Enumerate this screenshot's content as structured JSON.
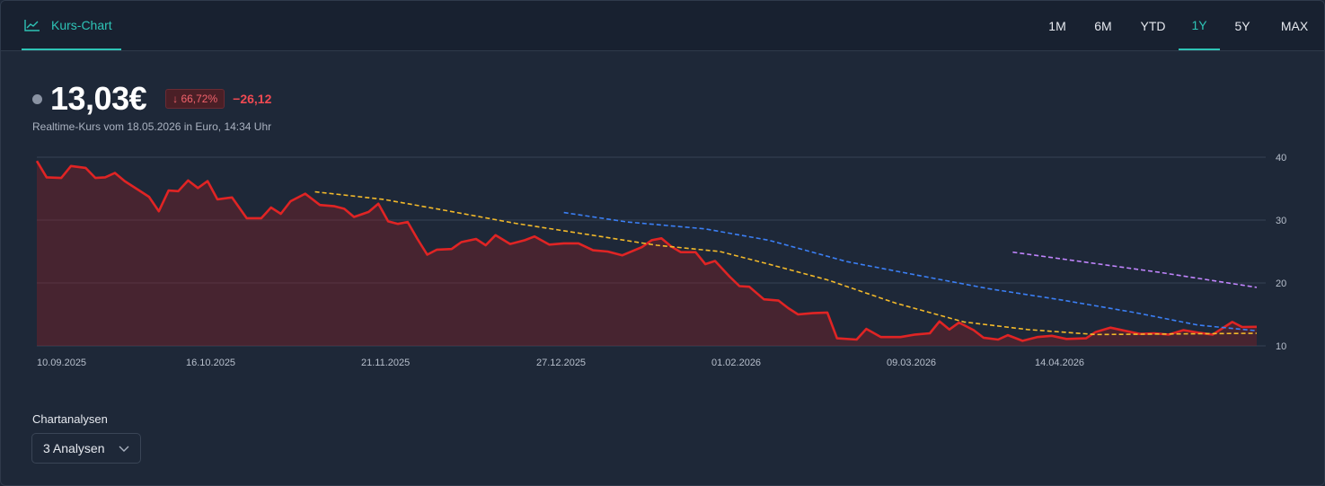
{
  "header": {
    "tab_label": "Kurs-Chart",
    "tab_icon": "line-chart-icon",
    "ranges": [
      "1M",
      "6M",
      "YTD",
      "1Y",
      "5Y",
      "MAX"
    ],
    "active_range": "1Y"
  },
  "quote": {
    "price": "13,03€",
    "change_pct": "↓ 66,72%",
    "change_abs": "−26,12",
    "subline": "Realtime-Kurs vom 18.05.2026 in Euro, 14:34 Uhr"
  },
  "colors": {
    "accent": "#2ec4b6",
    "price_line": "#e02424",
    "sma_yellow": "#f2b92a",
    "sma_blue": "#3b7ff5",
    "sma_purple": "#c084fc",
    "negative": "#f04a52"
  },
  "analysis": {
    "label": "Chartanalysen",
    "select_value": "3 Analysen",
    "select_icon": "chevron-down-icon"
  },
  "chart_data": {
    "type": "line",
    "title": "",
    "xlabel": "",
    "ylabel": "",
    "x_ticks": [
      "10.09.2025",
      "16.10.2025",
      "21.11.2025",
      "27.12.2025",
      "01.02.2026",
      "09.03.2026",
      "14.04.2026"
    ],
    "x_range": [
      "2025-09-10",
      "2026-05-18"
    ],
    "ylim": [
      10,
      40
    ],
    "y_ticks": [
      10,
      20,
      30,
      40
    ],
    "y_axis_position": "right",
    "grid": true,
    "series": [
      {
        "role": "price",
        "area": true,
        "points": [
          [
            "2025-09-10",
            39.4
          ],
          [
            "2025-09-12",
            36.8
          ],
          [
            "2025-09-15",
            36.7
          ],
          [
            "2025-09-17",
            38.6
          ],
          [
            "2025-09-20",
            38.3
          ],
          [
            "2025-09-22",
            36.7
          ],
          [
            "2025-09-24",
            36.8
          ],
          [
            "2025-09-26",
            37.5
          ],
          [
            "2025-09-28",
            36.2
          ],
          [
            "2025-10-01",
            34.7
          ],
          [
            "2025-10-03",
            33.7
          ],
          [
            "2025-10-05",
            31.4
          ],
          [
            "2025-10-07",
            34.7
          ],
          [
            "2025-10-09",
            34.6
          ],
          [
            "2025-10-11",
            36.3
          ],
          [
            "2025-10-13",
            35.1
          ],
          [
            "2025-10-15",
            36.2
          ],
          [
            "2025-10-17",
            33.3
          ],
          [
            "2025-10-20",
            33.6
          ],
          [
            "2025-10-23",
            30.3
          ],
          [
            "2025-10-26",
            30.3
          ],
          [
            "2025-10-28",
            32.0
          ],
          [
            "2025-10-30",
            31.0
          ],
          [
            "2025-11-01",
            33.0
          ],
          [
            "2025-11-04",
            34.2
          ],
          [
            "2025-11-07",
            32.4
          ],
          [
            "2025-11-10",
            32.2
          ],
          [
            "2025-11-12",
            31.8
          ],
          [
            "2025-11-14",
            30.5
          ],
          [
            "2025-11-17",
            31.3
          ],
          [
            "2025-11-19",
            32.6
          ],
          [
            "2025-11-21",
            29.8
          ],
          [
            "2025-11-23",
            29.4
          ],
          [
            "2025-11-25",
            29.7
          ],
          [
            "2025-11-27",
            27.0
          ],
          [
            "2025-11-29",
            24.5
          ],
          [
            "2025-12-01",
            25.3
          ],
          [
            "2025-12-04",
            25.4
          ],
          [
            "2025-12-06",
            26.5
          ],
          [
            "2025-12-09",
            27.0
          ],
          [
            "2025-12-11",
            26.0
          ],
          [
            "2025-12-13",
            27.6
          ],
          [
            "2025-12-16",
            26.2
          ],
          [
            "2025-12-19",
            26.8
          ],
          [
            "2025-12-21",
            27.4
          ],
          [
            "2025-12-24",
            26.1
          ],
          [
            "2025-12-27",
            26.3
          ],
          [
            "2025-12-30",
            26.3
          ],
          [
            "2026-01-02",
            25.2
          ],
          [
            "2026-01-05",
            25.0
          ],
          [
            "2026-01-08",
            24.4
          ],
          [
            "2026-01-12",
            25.7
          ],
          [
            "2026-01-14",
            26.8
          ],
          [
            "2026-01-16",
            27.1
          ],
          [
            "2026-01-18",
            25.8
          ],
          [
            "2026-01-20",
            24.9
          ],
          [
            "2026-01-23",
            24.9
          ],
          [
            "2026-01-25",
            23.0
          ],
          [
            "2026-01-27",
            23.5
          ],
          [
            "2026-01-30",
            21.0
          ],
          [
            "2026-02-01",
            19.5
          ],
          [
            "2026-02-03",
            19.4
          ],
          [
            "2026-02-06",
            17.4
          ],
          [
            "2026-02-09",
            17.2
          ],
          [
            "2026-02-11",
            16.0
          ],
          [
            "2026-02-13",
            15.0
          ],
          [
            "2026-02-16",
            15.2
          ],
          [
            "2026-02-19",
            15.3
          ],
          [
            "2026-02-21",
            11.2
          ],
          [
            "2026-02-25",
            11.0
          ],
          [
            "2026-02-27",
            12.7
          ],
          [
            "2026-03-02",
            11.4
          ],
          [
            "2026-03-06",
            11.4
          ],
          [
            "2026-03-09",
            11.8
          ],
          [
            "2026-03-12",
            12.0
          ],
          [
            "2026-03-14",
            13.9
          ],
          [
            "2026-03-16",
            12.6
          ],
          [
            "2026-03-18",
            13.7
          ],
          [
            "2026-03-21",
            12.5
          ],
          [
            "2026-03-23",
            11.3
          ],
          [
            "2026-03-26",
            11.0
          ],
          [
            "2026-03-28",
            11.7
          ],
          [
            "2026-03-31",
            10.8
          ],
          [
            "2026-04-03",
            11.4
          ],
          [
            "2026-04-06",
            11.6
          ],
          [
            "2026-04-09",
            11.1
          ],
          [
            "2026-04-13",
            11.2
          ],
          [
            "2026-04-15",
            12.2
          ],
          [
            "2026-04-18",
            12.9
          ],
          [
            "2026-04-21",
            12.4
          ],
          [
            "2026-04-24",
            11.9
          ],
          [
            "2026-04-27",
            12.0
          ],
          [
            "2026-04-30",
            11.8
          ],
          [
            "2026-05-03",
            12.5
          ],
          [
            "2026-05-06",
            12.1
          ],
          [
            "2026-05-09",
            11.8
          ],
          [
            "2026-05-11",
            12.8
          ],
          [
            "2026-05-13",
            13.8
          ],
          [
            "2026-05-15",
            13.0
          ],
          [
            "2026-05-18",
            13.03
          ]
        ]
      },
      {
        "role": "moving-average",
        "style": "dashed",
        "points": [
          [
            "2025-11-06",
            34.5
          ],
          [
            "2025-11-20",
            33.3
          ],
          [
            "2025-12-03",
            31.5
          ],
          [
            "2025-12-17",
            29.5
          ],
          [
            "2026-01-01",
            27.7
          ],
          [
            "2026-01-15",
            26.0
          ],
          [
            "2026-01-28",
            25.0
          ],
          [
            "2026-02-06",
            23.2
          ],
          [
            "2026-02-19",
            20.5
          ],
          [
            "2026-03-05",
            16.8
          ],
          [
            "2026-03-19",
            13.8
          ],
          [
            "2026-04-01",
            12.6
          ],
          [
            "2026-04-15",
            11.8
          ],
          [
            "2026-05-18",
            12.0
          ]
        ]
      },
      {
        "role": "moving-average",
        "style": "dashed",
        "points": [
          [
            "2025-12-27",
            31.2
          ],
          [
            "2026-01-09",
            29.7
          ],
          [
            "2026-01-25",
            28.6
          ],
          [
            "2026-02-07",
            26.8
          ],
          [
            "2026-02-23",
            23.4
          ],
          [
            "2026-03-09",
            21.3
          ],
          [
            "2026-03-24",
            19.1
          ],
          [
            "2026-04-08",
            17.3
          ],
          [
            "2026-04-23",
            15.3
          ],
          [
            "2026-05-06",
            13.3
          ],
          [
            "2026-05-18",
            12.4
          ]
        ]
      },
      {
        "role": "moving-average",
        "style": "dashed",
        "points": [
          [
            "2026-03-29",
            24.9
          ],
          [
            "2026-04-13",
            23.3
          ],
          [
            "2026-04-28",
            21.7
          ],
          [
            "2026-05-18",
            19.3
          ]
        ]
      }
    ]
  }
}
